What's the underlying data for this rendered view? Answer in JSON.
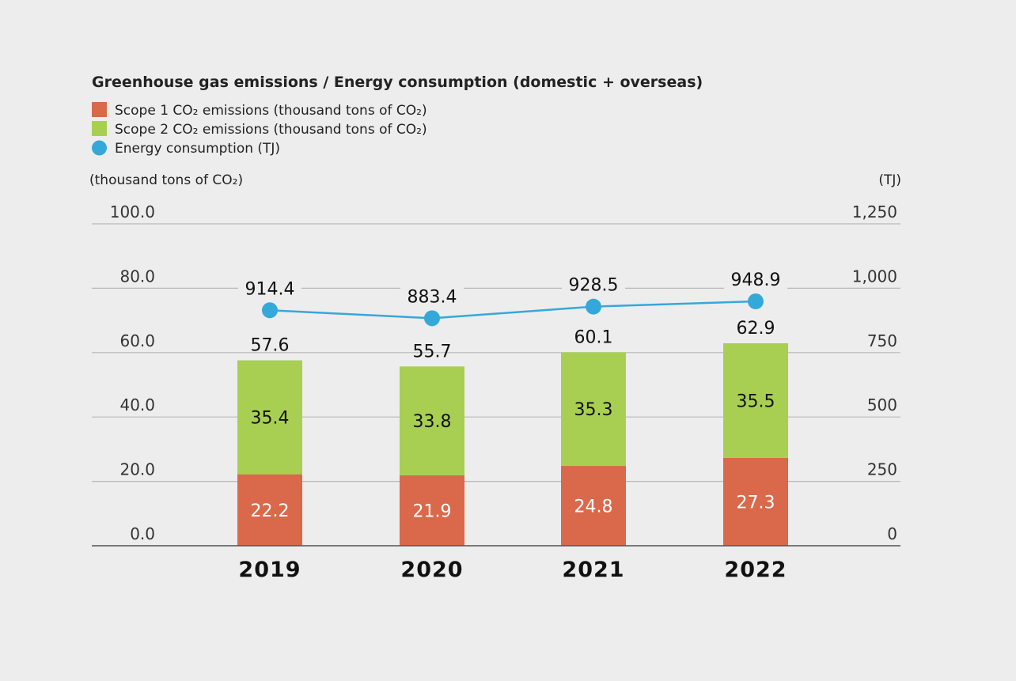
{
  "chart_data": {
    "type": "bar",
    "stacked": true,
    "title": "Greenhouse gas emissions / Energy consumption (domestic + overseas)",
    "legend": [
      {
        "key": "scope1",
        "label": "Scope 1 CO₂ emissions (thousand tons of CO₂)",
        "marker": "square"
      },
      {
        "key": "scope2",
        "label": "Scope 2 CO₂ emissions (thousand tons of CO₂)",
        "marker": "square"
      },
      {
        "key": "energy",
        "label": "Energy consumption (TJ)",
        "marker": "circle"
      }
    ],
    "categories": [
      "2019",
      "2020",
      "2021",
      "2022"
    ],
    "series": [
      {
        "name": "Scope 1 CO₂ emissions",
        "key": "scope1",
        "axis": "left",
        "values": [
          22.2,
          21.9,
          24.8,
          27.3
        ],
        "labels": [
          "22.2",
          "21.9",
          "24.8",
          "27.3"
        ]
      },
      {
        "name": "Scope 2 CO₂ emissions",
        "key": "scope2",
        "axis": "left",
        "values": [
          35.4,
          33.8,
          35.3,
          35.5
        ],
        "labels": [
          "35.4",
          "33.8",
          "35.3",
          "35.5"
        ]
      },
      {
        "name": "Energy consumption",
        "key": "energy",
        "axis": "right",
        "type": "line",
        "values": [
          914.4,
          883.4,
          928.5,
          948.9
        ],
        "labels": [
          "914.4",
          "883.4",
          "928.5",
          "948.9"
        ]
      }
    ],
    "totals": {
      "values": [
        57.6,
        55.7,
        60.1,
        62.9
      ],
      "labels": [
        "57.6",
        "55.7",
        "60.1",
        "62.9"
      ]
    },
    "y_left": {
      "label": "(thousand tons of CO₂)",
      "lim": [
        0,
        100
      ],
      "ticks": [
        0,
        20,
        40,
        60,
        80,
        100
      ],
      "tick_labels": [
        "0.0",
        "20.0",
        "40.0",
        "60.0",
        "80.0",
        "100.0"
      ]
    },
    "y_right": {
      "label": "(TJ)",
      "lim": [
        0,
        1250
      ],
      "ticks": [
        0,
        250,
        500,
        750,
        1000,
        1250
      ],
      "tick_labels": [
        "0",
        "250",
        "500",
        "750",
        "1,000",
        "1,250"
      ]
    },
    "grid": true,
    "legend_position": "top-left"
  },
  "colors": {
    "scope1": "#d9694a",
    "scope2": "#a8cf52",
    "energy": "#35a8da",
    "background": "#ededed"
  }
}
